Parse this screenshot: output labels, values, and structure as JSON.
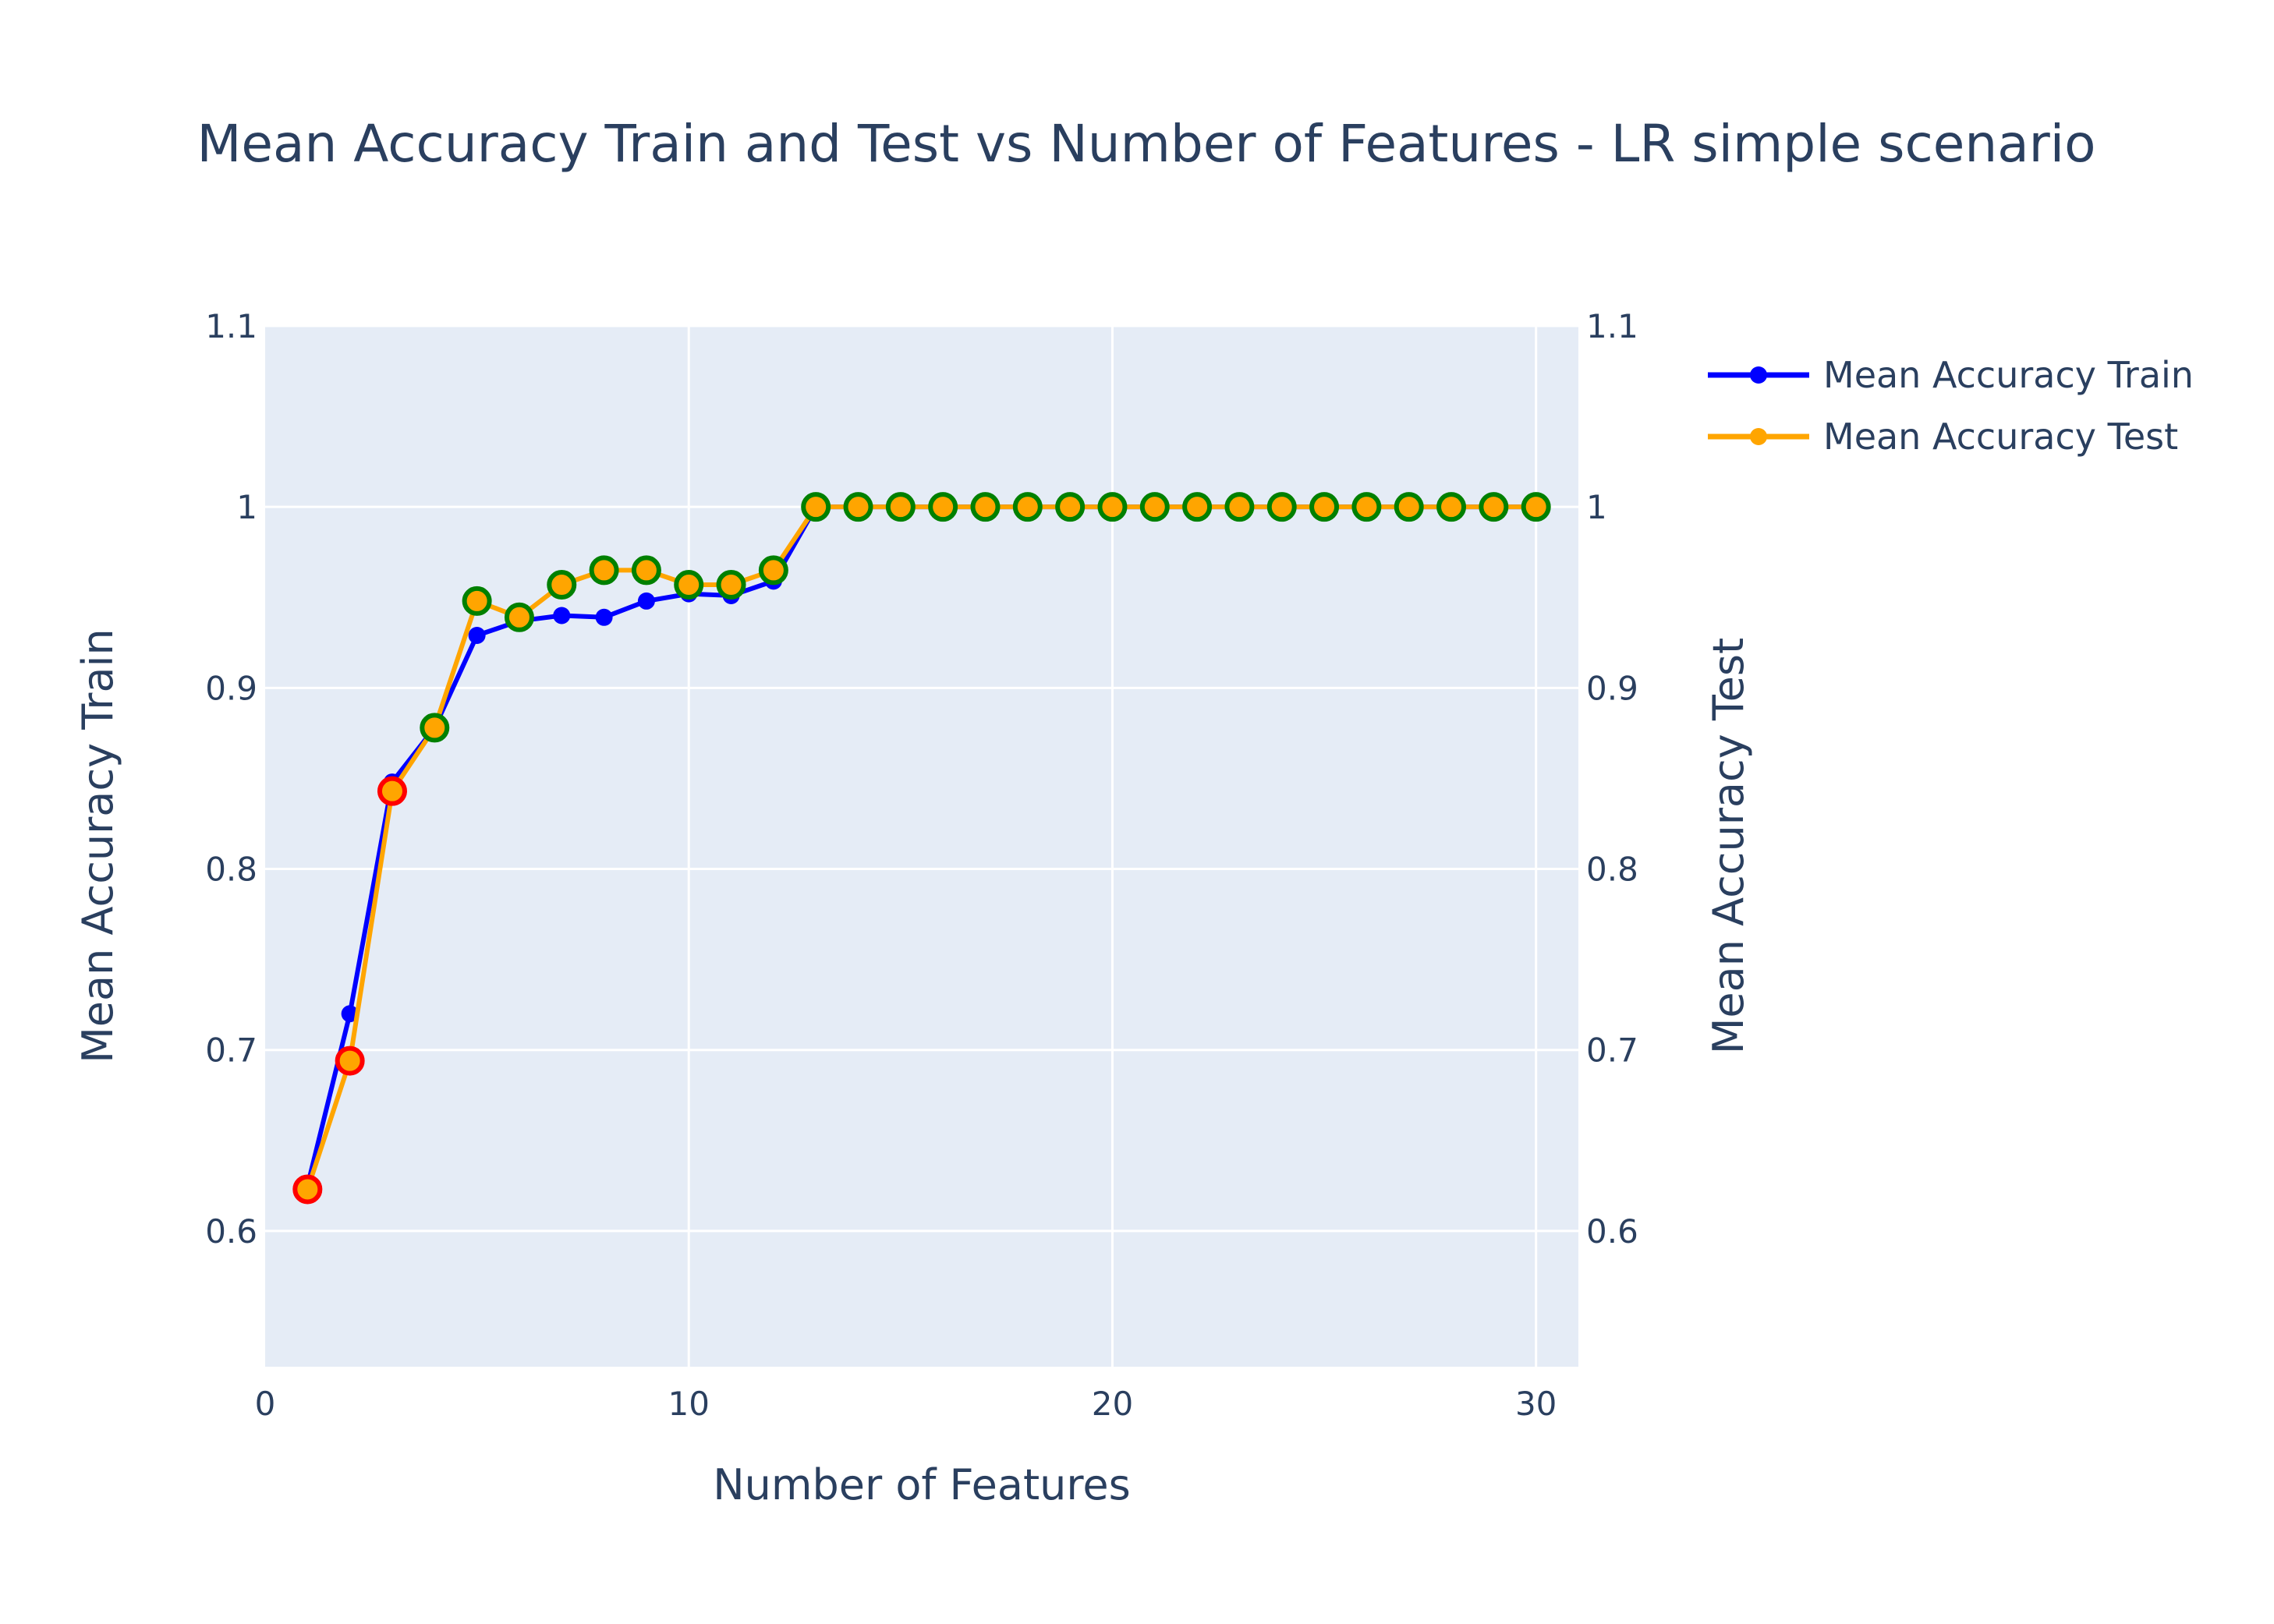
{
  "chart_data": {
    "type": "line",
    "title": "Mean Accuracy Train and Test vs Number of Features - LR simple scenario",
    "xlabel": "Number of Features",
    "ylabel": "Mean Accuracy Train",
    "y2label": "Mean Accuracy Test",
    "xlim": [
      0,
      31
    ],
    "ylim": [
      0.525,
      1.1
    ],
    "y2lim": [
      0.525,
      1.1
    ],
    "x_ticks": [
      "0",
      "10",
      "20",
      "30"
    ],
    "y_ticks": [
      "0.6",
      "0.7",
      "0.8",
      "0.9",
      "1",
      "1.1"
    ],
    "grid": true,
    "legend_position": "top-right, outside plot",
    "x": [
      1,
      2,
      3,
      4,
      5,
      6,
      7,
      8,
      9,
      10,
      11,
      12,
      13,
      14,
      15,
      16,
      17,
      18,
      19,
      20,
      21,
      22,
      23,
      24,
      25,
      26,
      27,
      28,
      29,
      30
    ],
    "series": [
      {
        "name": "Mean Accuracy Train",
        "color": "#0000ff",
        "axis": "y",
        "values": [
          0.625,
          0.72,
          0.848,
          0.878,
          0.929,
          0.937,
          0.94,
          0.939,
          0.948,
          0.952,
          0.951,
          0.959,
          1,
          1,
          1,
          1,
          1,
          1,
          1,
          1,
          1,
          1,
          1,
          1,
          1,
          1,
          1,
          1,
          1,
          1
        ]
      },
      {
        "name": "Mean Accuracy Test",
        "color": "#ffa500",
        "axis": "y2",
        "values": [
          0.623,
          0.694,
          0.843,
          0.878,
          0.948,
          0.939,
          0.957,
          0.965,
          0.965,
          0.957,
          0.957,
          0.965,
          1,
          1,
          1,
          1,
          1,
          1,
          1,
          1,
          1,
          1,
          1,
          1,
          1,
          1,
          1,
          1,
          1,
          1
        ],
        "marker_outline_colors": [
          "#ff0000",
          "#ff0000",
          "#ff0000",
          "#008000",
          "#008000",
          "#008000",
          "#008000",
          "#008000",
          "#008000",
          "#008000",
          "#008000",
          "#008000",
          "#008000",
          "#008000",
          "#008000",
          "#008000",
          "#008000",
          "#008000",
          "#008000",
          "#008000",
          "#008000",
          "#008000",
          "#008000",
          "#008000",
          "#008000",
          "#008000",
          "#008000",
          "#008000",
          "#008000",
          "#008000"
        ]
      }
    ]
  },
  "colors": {
    "plot_background": "#e5ecf6",
    "gridline": "#ffffff",
    "text": "#2a3f5f"
  }
}
